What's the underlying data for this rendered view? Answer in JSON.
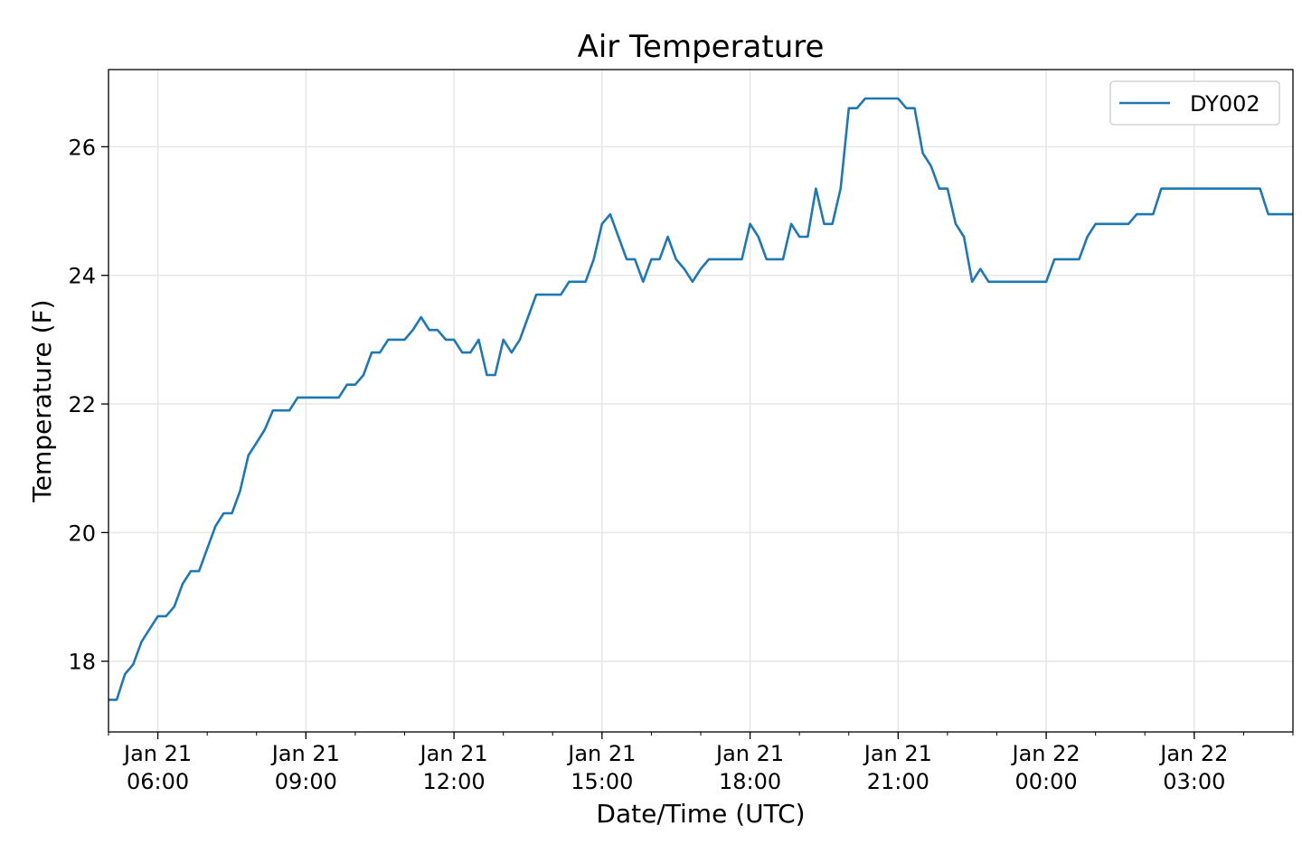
{
  "chart_data": {
    "type": "line",
    "title": "Air Temperature",
    "xlabel": "Date/Time (UTC)",
    "ylabel": "Temperature (F)",
    "grid": true,
    "legend_position": "top-right",
    "xlim": [
      "2019-01-21T05:00",
      "2019-01-22T05:00"
    ],
    "ylim": [
      16.9,
      27.2
    ],
    "x_ticks": [
      {
        "value": "2019-01-21T06:00",
        "label": [
          "Jan 21",
          "06:00"
        ]
      },
      {
        "value": "2019-01-21T09:00",
        "label": [
          "Jan 21",
          "09:00"
        ]
      },
      {
        "value": "2019-01-21T12:00",
        "label": [
          "Jan 21",
          "12:00"
        ]
      },
      {
        "value": "2019-01-21T15:00",
        "label": [
          "Jan 21",
          "15:00"
        ]
      },
      {
        "value": "2019-01-21T18:00",
        "label": [
          "Jan 21",
          "18:00"
        ]
      },
      {
        "value": "2019-01-21T21:00",
        "label": [
          "Jan 21",
          "21:00"
        ]
      },
      {
        "value": "2019-01-22T00:00",
        "label": [
          "Jan 22",
          "00:00"
        ]
      },
      {
        "value": "2019-01-22T03:00",
        "label": [
          "Jan 22",
          "03:00"
        ]
      }
    ],
    "y_ticks": [
      18,
      20,
      22,
      24,
      26
    ],
    "series": [
      {
        "name": "DY002",
        "color": "#1f77b4",
        "x": [
          "2019-01-21T05:00",
          "2019-01-21T05:10",
          "2019-01-21T05:20",
          "2019-01-21T05:30",
          "2019-01-21T05:40",
          "2019-01-21T05:50",
          "2019-01-21T06:00",
          "2019-01-21T06:10",
          "2019-01-21T06:20",
          "2019-01-21T06:30",
          "2019-01-21T06:40",
          "2019-01-21T06:50",
          "2019-01-21T07:00",
          "2019-01-21T07:10",
          "2019-01-21T07:20",
          "2019-01-21T07:30",
          "2019-01-21T07:40",
          "2019-01-21T07:50",
          "2019-01-21T08:00",
          "2019-01-21T08:10",
          "2019-01-21T08:20",
          "2019-01-21T08:30",
          "2019-01-21T08:40",
          "2019-01-21T08:50",
          "2019-01-21T09:00",
          "2019-01-21T09:10",
          "2019-01-21T09:20",
          "2019-01-21T09:30",
          "2019-01-21T09:40",
          "2019-01-21T09:50",
          "2019-01-21T10:00",
          "2019-01-21T10:10",
          "2019-01-21T10:20",
          "2019-01-21T10:30",
          "2019-01-21T10:40",
          "2019-01-21T10:50",
          "2019-01-21T11:00",
          "2019-01-21T11:10",
          "2019-01-21T11:20",
          "2019-01-21T11:30",
          "2019-01-21T11:40",
          "2019-01-21T11:50",
          "2019-01-21T12:00",
          "2019-01-21T12:10",
          "2019-01-21T12:20",
          "2019-01-21T12:30",
          "2019-01-21T12:40",
          "2019-01-21T12:50",
          "2019-01-21T13:00",
          "2019-01-21T13:10",
          "2019-01-21T13:20",
          "2019-01-21T13:30",
          "2019-01-21T13:40",
          "2019-01-21T13:50",
          "2019-01-21T14:00",
          "2019-01-21T14:10",
          "2019-01-21T14:20",
          "2019-01-21T14:30",
          "2019-01-21T14:40",
          "2019-01-21T14:50",
          "2019-01-21T15:00",
          "2019-01-21T15:10",
          "2019-01-21T15:20",
          "2019-01-21T15:30",
          "2019-01-21T15:40",
          "2019-01-21T15:50",
          "2019-01-21T16:00",
          "2019-01-21T16:10",
          "2019-01-21T16:20",
          "2019-01-21T16:30",
          "2019-01-21T16:40",
          "2019-01-21T16:50",
          "2019-01-21T17:00",
          "2019-01-21T17:10",
          "2019-01-21T17:20",
          "2019-01-21T17:30",
          "2019-01-21T17:40",
          "2019-01-21T17:50",
          "2019-01-21T18:00",
          "2019-01-21T18:10",
          "2019-01-21T18:20",
          "2019-01-21T18:30",
          "2019-01-21T18:40",
          "2019-01-21T18:50",
          "2019-01-21T19:00",
          "2019-01-21T19:10",
          "2019-01-21T19:20",
          "2019-01-21T19:30",
          "2019-01-21T19:40",
          "2019-01-21T19:50",
          "2019-01-21T20:00",
          "2019-01-21T20:10",
          "2019-01-21T20:20",
          "2019-01-21T20:30",
          "2019-01-21T20:40",
          "2019-01-21T20:50",
          "2019-01-21T21:00",
          "2019-01-21T21:10",
          "2019-01-21T21:20",
          "2019-01-21T21:30",
          "2019-01-21T21:40",
          "2019-01-21T21:50",
          "2019-01-21T22:00",
          "2019-01-21T22:10",
          "2019-01-21T22:20",
          "2019-01-21T22:30",
          "2019-01-21T22:40",
          "2019-01-21T22:50",
          "2019-01-21T23:00",
          "2019-01-21T23:10",
          "2019-01-21T23:20",
          "2019-01-21T23:30",
          "2019-01-21T23:40",
          "2019-01-21T23:50",
          "2019-01-22T00:00",
          "2019-01-22T00:10",
          "2019-01-22T00:20",
          "2019-01-22T00:30",
          "2019-01-22T00:40",
          "2019-01-22T00:50",
          "2019-01-22T01:00",
          "2019-01-22T01:10",
          "2019-01-22T01:20",
          "2019-01-22T01:30",
          "2019-01-22T01:40",
          "2019-01-22T01:50",
          "2019-01-22T02:00",
          "2019-01-22T02:10",
          "2019-01-22T02:20",
          "2019-01-22T02:30",
          "2019-01-22T02:40",
          "2019-01-22T02:50",
          "2019-01-22T03:00",
          "2019-01-22T03:10",
          "2019-01-22T03:20",
          "2019-01-22T03:30",
          "2019-01-22T03:40",
          "2019-01-22T03:50",
          "2019-01-22T04:00",
          "2019-01-22T04:10",
          "2019-01-22T04:20",
          "2019-01-22T04:30",
          "2019-01-22T04:40",
          "2019-01-22T04:50",
          "2019-01-22T05:00"
        ],
        "y": [
          17.4,
          17.4,
          17.8,
          17.95,
          18.3,
          18.5,
          18.7,
          18.7,
          18.85,
          19.2,
          19.4,
          19.4,
          19.75,
          20.1,
          20.3,
          20.3,
          20.65,
          21.2,
          21.4,
          21.6,
          21.9,
          21.9,
          21.9,
          22.1,
          22.1,
          22.1,
          22.1,
          22.1,
          22.1,
          22.3,
          22.3,
          22.45,
          22.8,
          22.8,
          23.0,
          23.0,
          23.0,
          23.15,
          23.35,
          23.15,
          23.15,
          23.0,
          23.0,
          22.8,
          22.8,
          23.0,
          22.45,
          22.45,
          23.0,
          22.8,
          23.0,
          23.35,
          23.7,
          23.7,
          23.7,
          23.7,
          23.9,
          23.9,
          23.9,
          24.25,
          24.8,
          24.95,
          24.6,
          24.25,
          24.25,
          23.9,
          24.25,
          24.25,
          24.6,
          24.25,
          24.1,
          23.9,
          24.1,
          24.25,
          24.25,
          24.25,
          24.25,
          24.25,
          24.8,
          24.6,
          24.25,
          24.25,
          24.25,
          24.8,
          24.6,
          24.6,
          25.35,
          24.8,
          24.8,
          25.35,
          26.6,
          26.6,
          26.75,
          26.75,
          26.75,
          26.75,
          26.75,
          26.6,
          26.6,
          25.9,
          25.7,
          25.35,
          25.35,
          24.8,
          24.6,
          23.9,
          24.1,
          23.9,
          23.9,
          23.9,
          23.9,
          23.9,
          23.9,
          23.9,
          23.9,
          24.25,
          24.25,
          24.25,
          24.25,
          24.6,
          24.8,
          24.8,
          24.8,
          24.8,
          24.8,
          24.95,
          24.95,
          24.95,
          25.35,
          25.35,
          25.35,
          25.35,
          25.35,
          25.35,
          25.35,
          25.35,
          25.35,
          25.35,
          25.35,
          25.35,
          25.35,
          24.95,
          24.95,
          24.95,
          24.95
        ]
      }
    ]
  }
}
